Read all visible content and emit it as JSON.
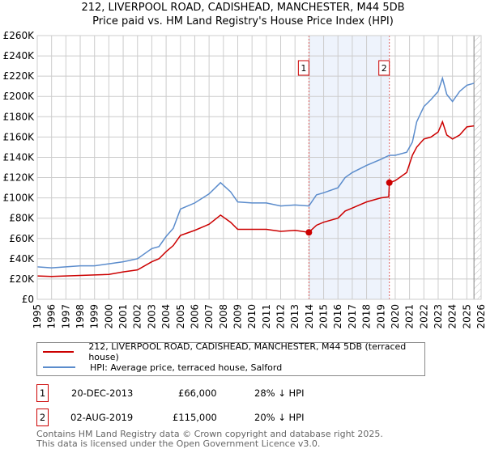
{
  "title": "212, LIVERPOOL ROAD, CADISHEAD, MANCHESTER, M44 5DB",
  "subtitle": "Price paid vs. HM Land Registry's House Price Index (HPI)",
  "chart_data": {
    "type": "line",
    "title": "212, LIVERPOOL ROAD, CADISHEAD, MANCHESTER, M44 5DB",
    "subtitle": "Price paid vs. HM Land Registry's House Price Index (HPI)",
    "xlim": [
      1995,
      2026
    ],
    "ylim": [
      0,
      260000
    ],
    "x_ticks": [
      "1995",
      "1996",
      "1997",
      "1998",
      "1999",
      "2000",
      "2001",
      "2002",
      "2003",
      "2004",
      "2005",
      "2006",
      "2007",
      "2008",
      "2009",
      "2010",
      "2011",
      "2012",
      "2013",
      "2014",
      "2015",
      "2016",
      "2017",
      "2018",
      "2019",
      "2020",
      "2021",
      "2022",
      "2023",
      "2024",
      "2025",
      "2026"
    ],
    "y_ticks": [
      {
        "v": 0,
        "label": "£0"
      },
      {
        "v": 20000,
        "label": "£20K"
      },
      {
        "v": 40000,
        "label": "£40K"
      },
      {
        "v": 60000,
        "label": "£60K"
      },
      {
        "v": 80000,
        "label": "£80K"
      },
      {
        "v": 100000,
        "label": "£100K"
      },
      {
        "v": 120000,
        "label": "£120K"
      },
      {
        "v": 140000,
        "label": "£140K"
      },
      {
        "v": 160000,
        "label": "£160K"
      },
      {
        "v": 180000,
        "label": "£180K"
      },
      {
        "v": 200000,
        "label": "£200K"
      },
      {
        "v": 220000,
        "label": "£220K"
      },
      {
        "v": 240000,
        "label": "£240K"
      },
      {
        "v": 260000,
        "label": "£260K"
      }
    ],
    "grid": true,
    "shaded_range": [
      2013.97,
      2019.59
    ],
    "forecast_hatch_from": 2025.5,
    "series": [
      {
        "name": "212, LIVERPOOL ROAD, CADISHEAD, MANCHESTER, M44 5DB (terraced house)",
        "color": "#cc0000",
        "x": [
          1995,
          1996,
          1997,
          1998,
          1999,
          2000,
          2001,
          2002,
          2003,
          2003.5,
          2004,
          2004.5,
          2005,
          2006,
          2007,
          2007.8,
          2008.5,
          2009,
          2010,
          2011,
          2012,
          2013,
          2013.97,
          2014.5,
          2015,
          2016,
          2016.5,
          2017,
          2018,
          2019,
          2019.55,
          2019.59,
          2020,
          2020.8,
          2021.2,
          2021.5,
          2022,
          2022.5,
          2023,
          2023.3,
          2023.6,
          2024,
          2024.5,
          2025,
          2025.5
        ],
        "y": [
          23000,
          22500,
          23000,
          23500,
          24000,
          24500,
          27000,
          29000,
          37000,
          40000,
          47000,
          53000,
          63000,
          68000,
          74000,
          83000,
          76000,
          69000,
          69000,
          69000,
          67000,
          68000,
          66000,
          73000,
          76000,
          80000,
          87000,
          90000,
          96000,
          100000,
          101000,
          115000,
          117000,
          125000,
          142000,
          150000,
          158000,
          160000,
          165000,
          175000,
          162000,
          158000,
          162000,
          170000,
          171000
        ]
      },
      {
        "name": "HPI: Average price, terraced house, Salford",
        "color": "#5b8ccc",
        "x": [
          1995,
          1996,
          1997,
          1998,
          1999,
          2000,
          2001,
          2002,
          2003,
          2003.5,
          2004,
          2004.5,
          2005,
          2006,
          2007,
          2007.8,
          2008.5,
          2009,
          2010,
          2011,
          2012,
          2013,
          2013.97,
          2014.5,
          2015,
          2016,
          2016.5,
          2017,
          2018,
          2019,
          2019.59,
          2020,
          2020.8,
          2021.2,
          2021.5,
          2022,
          2022.5,
          2023,
          2023.3,
          2023.6,
          2024,
          2024.5,
          2025,
          2025.5
        ],
        "y": [
          32000,
          31000,
          32000,
          33000,
          33000,
          35000,
          37000,
          40000,
          50000,
          52000,
          62000,
          70000,
          89000,
          95000,
          104000,
          115000,
          106000,
          96000,
          95000,
          95000,
          92000,
          93000,
          92000,
          103000,
          105000,
          110000,
          120000,
          125000,
          132000,
          138000,
          142000,
          142000,
          145000,
          155000,
          175000,
          190000,
          197000,
          205000,
          218000,
          202000,
          195000,
          205000,
          211000,
          213000
        ]
      }
    ],
    "transactions": [
      {
        "label": "1",
        "date": "20-DEC-2013",
        "x": 2013.97,
        "price": "£66,000",
        "value": 66000,
        "hpi": "28% ↓ HPI"
      },
      {
        "label": "2",
        "date": "02-AUG-2019",
        "x": 2019.59,
        "price": "£115,000",
        "value": 115000,
        "hpi": "20% ↓ HPI"
      }
    ]
  },
  "footer": {
    "line1": "Contains HM Land Registry data © Crown copyright and database right 2025.",
    "line2": "This data is licensed under the Open Government Licence v3.0."
  }
}
